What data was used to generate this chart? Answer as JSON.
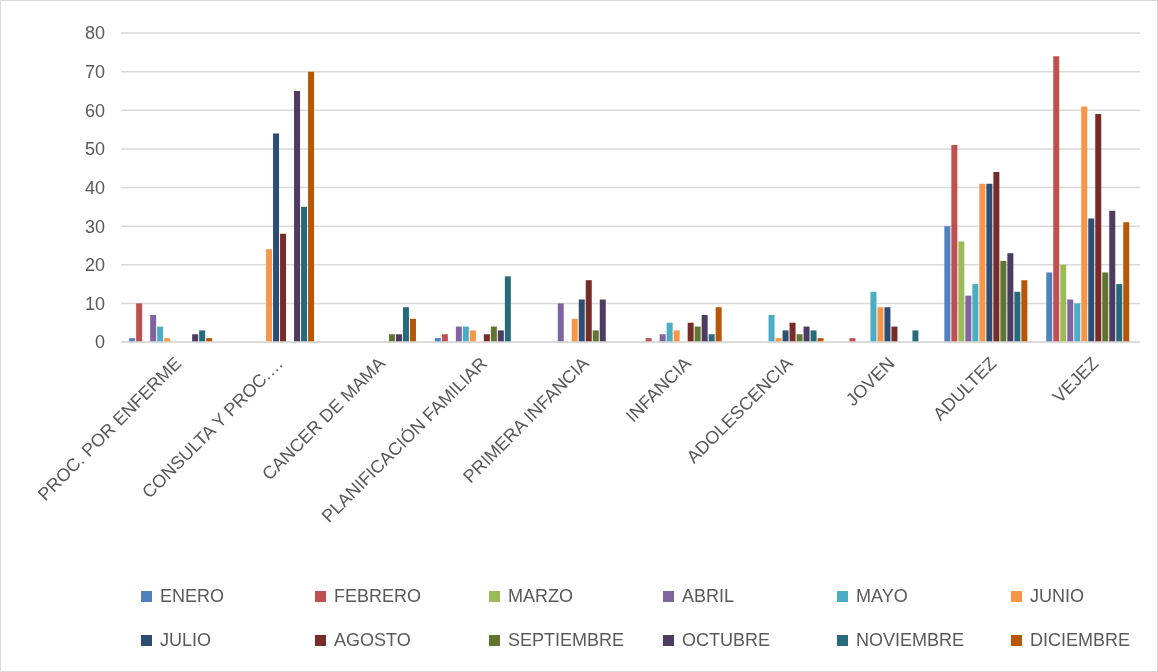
{
  "chart_data": {
    "type": "bar",
    "categories": [
      "PROC. POR ENFERME",
      "CONSULTA Y PROC.…",
      "CANCER DE MAMA",
      "PLANIFICACIÓN FAMILIAR",
      "PRIMERA INFANCIA",
      "INFANCIA",
      "ADOLESCENCIA",
      "JOVEN",
      "ADULTEZ",
      "VEJEZ"
    ],
    "series": [
      {
        "name": "ENERO",
        "color": "#4f81bd",
        "values": [
          1,
          0,
          0,
          1,
          0,
          0,
          0,
          0,
          30,
          18
        ]
      },
      {
        "name": "FEBRERO",
        "color": "#c0504d",
        "values": [
          10,
          0,
          0,
          2,
          0,
          1,
          0,
          1,
          51,
          74
        ]
      },
      {
        "name": "MARZO",
        "color": "#9bbb59",
        "values": [
          0,
          0,
          0,
          0,
          0,
          0,
          0,
          0,
          26,
          20
        ]
      },
      {
        "name": "ABRIL",
        "color": "#8064a2",
        "values": [
          7,
          0,
          0,
          4,
          10,
          2,
          0,
          0,
          12,
          11
        ]
      },
      {
        "name": "MAYO",
        "color": "#4bacc6",
        "values": [
          4,
          0,
          0,
          4,
          0,
          5,
          7,
          13,
          15,
          10
        ]
      },
      {
        "name": "JUNIO",
        "color": "#f79646",
        "values": [
          1,
          24,
          0,
          3,
          6,
          3,
          1,
          9,
          41,
          61
        ]
      },
      {
        "name": "JULIO",
        "color": "#2c4d75",
        "values": [
          0,
          54,
          0,
          0,
          11,
          0,
          3,
          9,
          41,
          32
        ]
      },
      {
        "name": "AGOSTO",
        "color": "#772c2a",
        "values": [
          0,
          28,
          0,
          2,
          16,
          5,
          5,
          4,
          44,
          59
        ]
      },
      {
        "name": "SEPTIEMBRE",
        "color": "#5f7530",
        "values": [
          0,
          0,
          2,
          4,
          3,
          4,
          2,
          0,
          21,
          18
        ]
      },
      {
        "name": "OCTUBRE",
        "color": "#4d3b62",
        "values": [
          2,
          65,
          2,
          3,
          11,
          7,
          4,
          0,
          23,
          34
        ]
      },
      {
        "name": "NOVIEMBRE",
        "color": "#276a7c",
        "values": [
          3,
          35,
          9,
          17,
          0,
          2,
          3,
          3,
          13,
          15
        ]
      },
      {
        "name": "DICIEMBRE",
        "color": "#b65708",
        "values": [
          1,
          70,
          6,
          0,
          0,
          9,
          1,
          0,
          16,
          31
        ]
      }
    ],
    "ylim": [
      0,
      80
    ],
    "yticks": [
      0,
      10,
      20,
      30,
      40,
      50,
      60,
      70,
      80
    ],
    "grid": "y",
    "legend": "bottom"
  }
}
